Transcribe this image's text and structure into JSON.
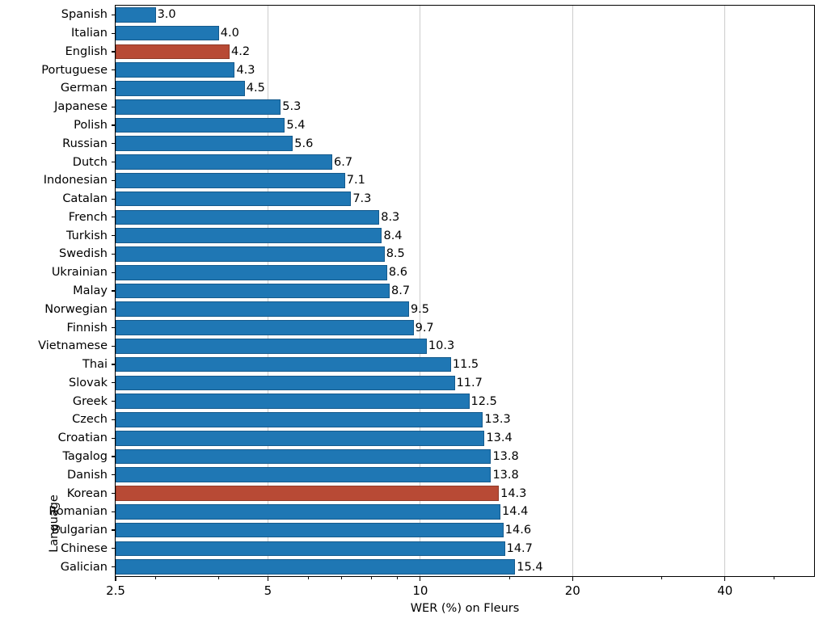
{
  "chart_data": {
    "type": "bar",
    "orientation": "horizontal",
    "xlabel": "WER (%) on Fleurs",
    "ylabel": "Language",
    "xscale": "log",
    "xlim": [
      2.5,
      60
    ],
    "x_major_ticks": [
      2.5,
      5,
      10,
      20,
      40
    ],
    "x_major_tick_labels": [
      "2.5",
      "5",
      "10",
      "20",
      "40"
    ],
    "x_minor_ticks": [
      3,
      4,
      6,
      7,
      8,
      9,
      15,
      30,
      50
    ],
    "grid": "vertical-major",
    "legend": "none",
    "value_label_format": "one-decimal",
    "categories": [
      "Spanish",
      "Italian",
      "English",
      "Portuguese",
      "German",
      "Japanese",
      "Polish",
      "Russian",
      "Dutch",
      "Indonesian",
      "Catalan",
      "French",
      "Turkish",
      "Swedish",
      "Ukrainian",
      "Malay",
      "Norwegian",
      "Finnish",
      "Vietnamese",
      "Thai",
      "Slovak",
      "Greek",
      "Czech",
      "Croatian",
      "Tagalog",
      "Danish",
      "Korean",
      "Romanian",
      "Bulgarian",
      "Chinese",
      "Galician"
    ],
    "values": [
      3.0,
      4.0,
      4.2,
      4.3,
      4.5,
      5.3,
      5.4,
      5.6,
      6.7,
      7.1,
      7.3,
      8.3,
      8.4,
      8.5,
      8.6,
      8.7,
      9.5,
      9.7,
      10.3,
      11.5,
      11.7,
      12.5,
      13.3,
      13.4,
      13.8,
      13.8,
      14.3,
      14.4,
      14.6,
      14.7,
      15.4
    ],
    "highlighted_categories": [
      "English",
      "Korean"
    ],
    "colors": {
      "bar": "#1f77b4",
      "bar_edge": "#155a8c",
      "highlight": "#b84a35",
      "highlight_edge": "#93English3a2a",
      "gridline": "#cccccc",
      "spine": "#000000",
      "text": "#000000",
      "background": "#ffffff"
    }
  }
}
